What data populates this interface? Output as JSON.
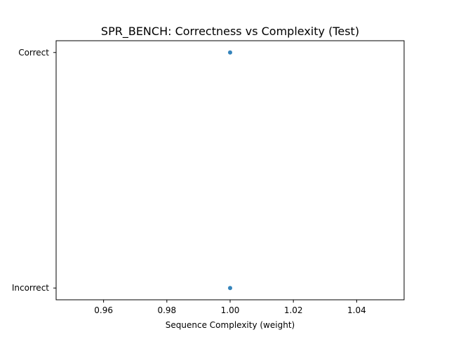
{
  "chart_data": {
    "type": "scatter",
    "title": "SPR_BENCH: Correctness vs Complexity (Test)",
    "xlabel": "Sequence Complexity (weight)",
    "ylabel": "",
    "xlim": [
      0.945,
      1.055
    ],
    "x_ticks": [
      "0.96",
      "0.98",
      "1.00",
      "1.02",
      "1.04"
    ],
    "y_categories": [
      "Incorrect",
      "Correct"
    ],
    "ylim": [
      -0.05,
      1.05
    ],
    "grid": false,
    "legend": "none",
    "marker_color": "#1f77b4",
    "series": [
      {
        "points": [
          {
            "x": 1.0,
            "y": "Correct"
          },
          {
            "x": 1.0,
            "y": "Incorrect"
          }
        ]
      }
    ]
  }
}
